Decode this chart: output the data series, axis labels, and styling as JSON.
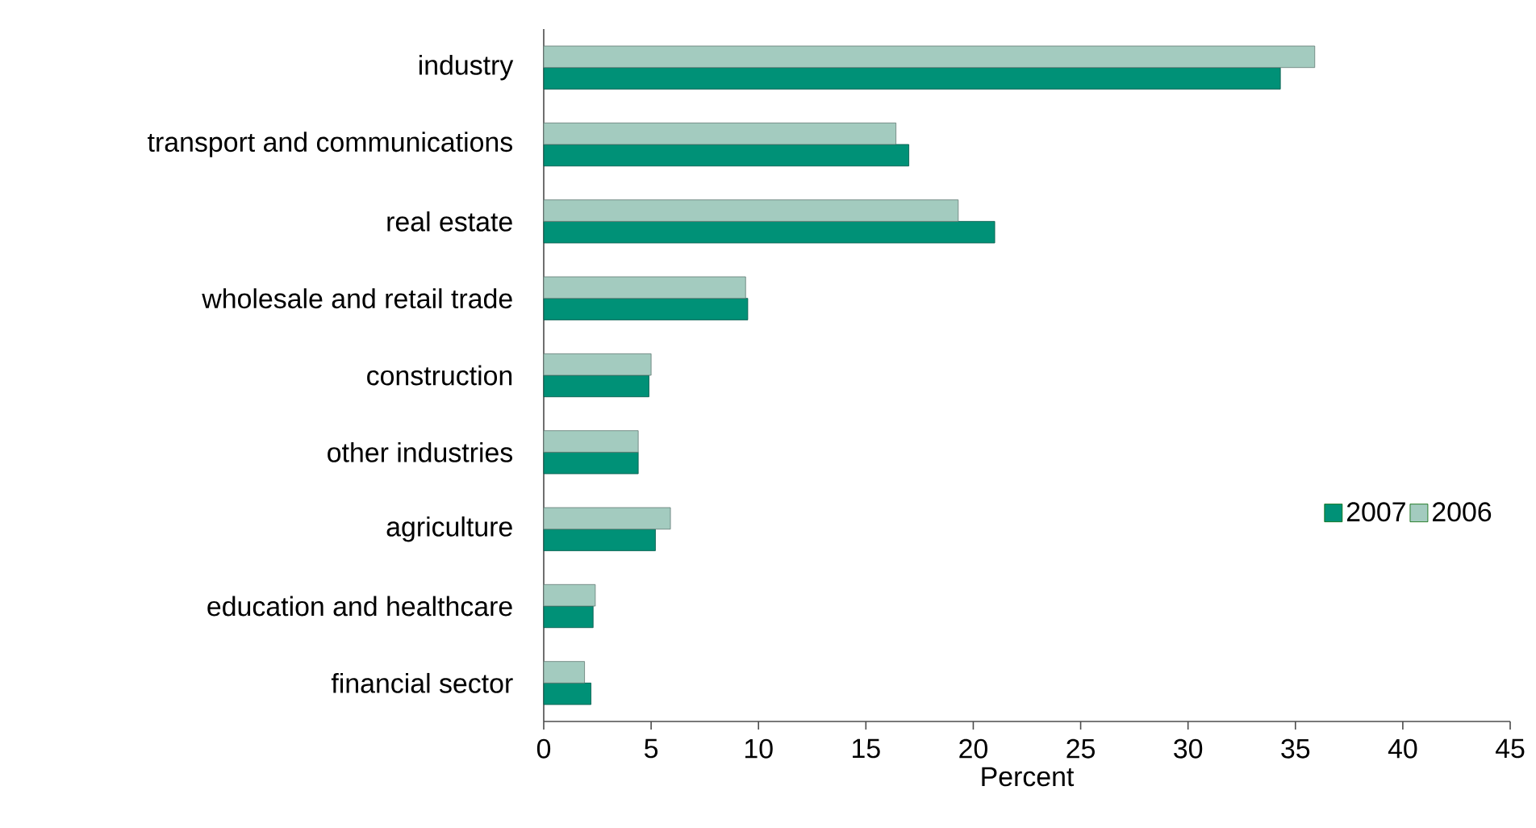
{
  "chart_data": {
    "type": "bar",
    "orientation": "horizontal",
    "xlabel": "Percent",
    "categories": [
      "industry",
      "transport and communications",
      "real estate",
      "wholesale and retail trade",
      "construction",
      "other industries",
      "agriculture",
      "education and healthcare",
      "financial sector"
    ],
    "series": [
      {
        "name": "2007",
        "color": "#009177",
        "values": [
          34.3,
          17.0,
          21.0,
          9.5,
          4.9,
          4.4,
          5.2,
          2.3,
          2.2
        ]
      },
      {
        "name": "2006",
        "color": "#a3cbbf",
        "values": [
          35.9,
          16.4,
          19.3,
          9.4,
          5.0,
          4.4,
          5.9,
          2.4,
          1.9
        ]
      }
    ],
    "xlim": [
      0,
      45
    ],
    "xticks": [
      0,
      5,
      10,
      15,
      20,
      25,
      30,
      35,
      40,
      45
    ],
    "legend": "right",
    "grid": false
  }
}
